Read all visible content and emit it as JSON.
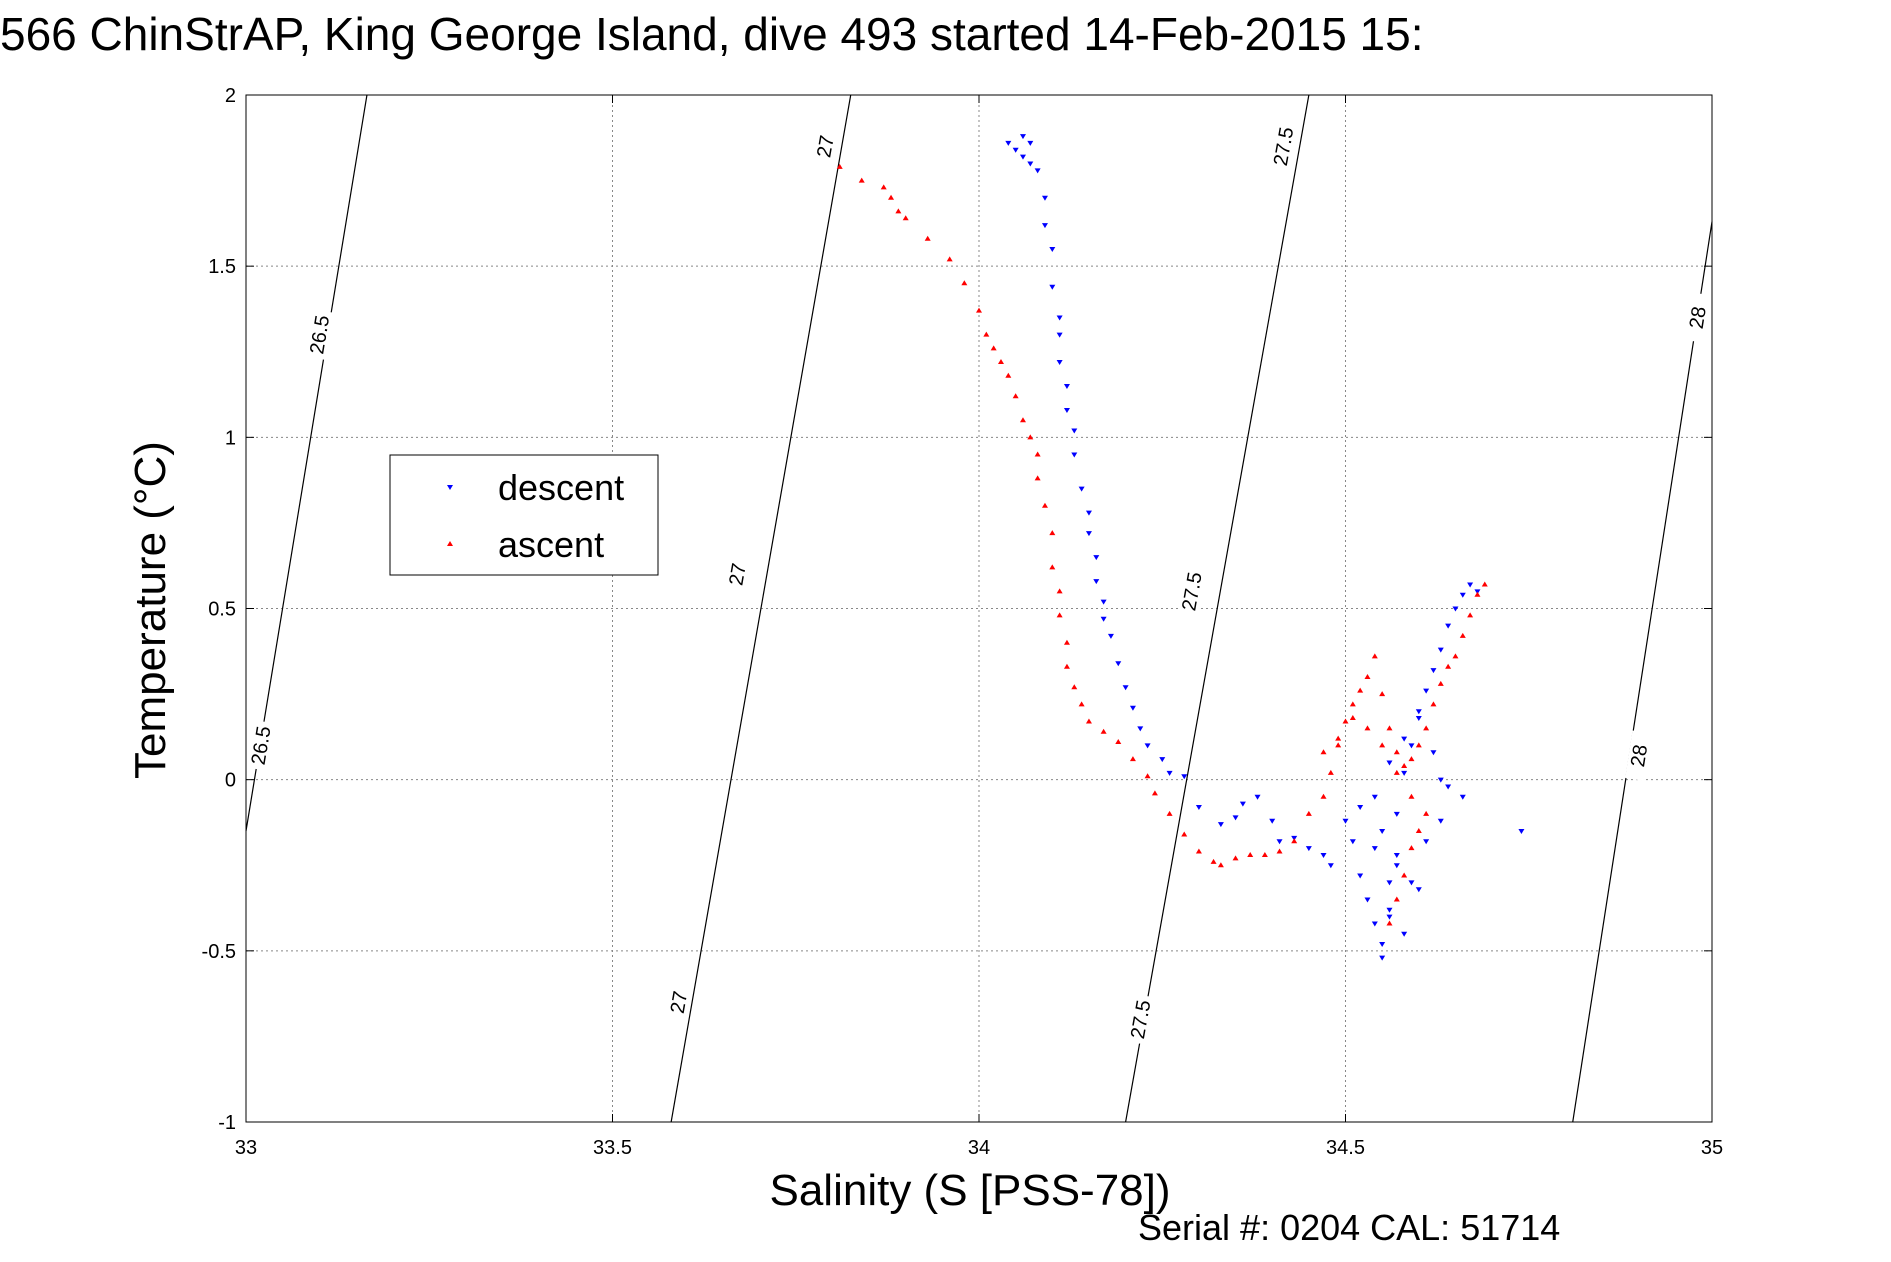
{
  "chart_data": {
    "type": "scatter",
    "title": "566 ChinStrAP, King George Island, dive 493 started 14-Feb-2015 15:",
    "xlabel": "Salinity (S [PSS-78])",
    "ylabel": "Temperature (°C)",
    "xlim": [
      33,
      35
    ],
    "ylim": [
      -1,
      2
    ],
    "xticks": [
      "33",
      "33.5",
      "34",
      "34.5",
      "35"
    ],
    "yticks": [
      "-1",
      "-0.5",
      "0",
      "0.5",
      "1",
      "1.5",
      "2"
    ],
    "grid": true,
    "legend_position": "middle-left",
    "legend": [
      {
        "name": "descent",
        "color": "#0000ff",
        "marker": "triangle-down"
      },
      {
        "name": "ascent",
        "color": "#ff0000",
        "marker": "triangle-up"
      }
    ],
    "contours": [
      {
        "label": "26.5",
        "points": [
          [
            33.0,
            -0.15
          ],
          [
            33.165,
            2.0
          ]
        ],
        "labels_at": [
          [
            33.1,
            1.3
          ],
          [
            33.02,
            0.1
          ]
        ]
      },
      {
        "label": "27",
        "points": [
          [
            33.58,
            -1.0
          ],
          [
            33.825,
            2.0
          ]
        ],
        "labels_at": [
          [
            33.79,
            1.85
          ],
          [
            33.67,
            0.6
          ],
          [
            33.59,
            -0.65
          ]
        ]
      },
      {
        "label": "27.5",
        "points": [
          [
            34.2,
            -1.0
          ],
          [
            34.45,
            2.0
          ]
        ],
        "labels_at": [
          [
            34.415,
            1.85
          ],
          [
            34.29,
            0.55
          ],
          [
            34.22,
            -0.7
          ]
        ]
      },
      {
        "label": "28",
        "points": [
          [
            34.81,
            -1.0
          ],
          [
            35.0,
            1.63
          ]
        ],
        "labels_at": [
          [
            34.98,
            1.35
          ],
          [
            34.9,
            0.07
          ]
        ]
      }
    ],
    "series": [
      {
        "name": "descent",
        "color": "#0000ff",
        "x": [
          34.04,
          34.05,
          34.06,
          34.06,
          34.07,
          34.07,
          34.08,
          34.09,
          34.09,
          34.1,
          34.1,
          34.11,
          34.11,
          34.11,
          34.12,
          34.12,
          34.13,
          34.13,
          34.14,
          34.15,
          34.15,
          34.16,
          34.16,
          34.17,
          34.17,
          34.18,
          34.19,
          34.2,
          34.21,
          34.22,
          34.23,
          34.25,
          34.26,
          34.28,
          34.3,
          34.33,
          34.35,
          34.36,
          34.38,
          34.4,
          34.41,
          34.43,
          34.45,
          34.47,
          34.48,
          34.5,
          34.51,
          34.52,
          34.53,
          34.54,
          34.55,
          34.55,
          34.56,
          34.56,
          34.57,
          34.57,
          34.58,
          34.59,
          34.6,
          34.61,
          34.62,
          34.63,
          34.64,
          34.65,
          34.66,
          34.67,
          34.68,
          34.54,
          34.56,
          34.58,
          34.6,
          34.62,
          34.64,
          34.55,
          34.57,
          34.59,
          34.61,
          34.63,
          34.74,
          34.52,
          34.54,
          34.56,
          34.58,
          34.6,
          34.63,
          34.66
        ],
        "y": [
          1.86,
          1.84,
          1.88,
          1.82,
          1.86,
          1.8,
          1.78,
          1.7,
          1.62,
          1.55,
          1.44,
          1.35,
          1.3,
          1.22,
          1.15,
          1.08,
          1.02,
          0.95,
          0.85,
          0.78,
          0.72,
          0.65,
          0.58,
          0.52,
          0.47,
          0.42,
          0.34,
          0.27,
          0.21,
          0.15,
          0.1,
          0.06,
          0.02,
          0.01,
          -0.08,
          -0.13,
          -0.11,
          -0.07,
          -0.05,
          -0.12,
          -0.18,
          -0.17,
          -0.2,
          -0.22,
          -0.25,
          -0.12,
          -0.18,
          -0.28,
          -0.35,
          -0.42,
          -0.48,
          -0.52,
          -0.4,
          -0.3,
          -0.22,
          -0.1,
          0.02,
          0.1,
          0.18,
          0.26,
          0.32,
          0.38,
          0.45,
          0.5,
          0.54,
          0.57,
          0.55,
          -0.05,
          0.05,
          0.12,
          0.2,
          0.08,
          -0.02,
          -0.15,
          -0.25,
          -0.3,
          -0.18,
          -0.12,
          -0.15,
          -0.08,
          -0.2,
          -0.38,
          -0.45,
          -0.32,
          0.0,
          -0.05
        ]
      },
      {
        "name": "ascent",
        "color": "#ff0000",
        "x": [
          33.81,
          33.84,
          33.87,
          33.88,
          33.89,
          33.9,
          33.93,
          33.96,
          33.98,
          34.0,
          34.01,
          34.02,
          34.03,
          34.04,
          34.05,
          34.06,
          34.07,
          34.08,
          34.08,
          34.09,
          34.1,
          34.1,
          34.11,
          34.11,
          34.12,
          34.12,
          34.13,
          34.14,
          34.15,
          34.17,
          34.19,
          34.21,
          34.23,
          34.24,
          34.26,
          34.28,
          34.3,
          34.32,
          34.33,
          34.35,
          34.37,
          34.39,
          34.41,
          34.43,
          34.45,
          34.47,
          34.48,
          34.49,
          34.5,
          34.51,
          34.52,
          34.53,
          34.54,
          34.55,
          34.56,
          34.57,
          34.58,
          34.59,
          34.6,
          34.61,
          34.62,
          34.63,
          34.64,
          34.65,
          34.66,
          34.67,
          34.68,
          34.69,
          34.47,
          34.49,
          34.51,
          34.53,
          34.55,
          34.57,
          34.59,
          34.61,
          34.56,
          34.57,
          34.58,
          34.59,
          34.6
        ],
        "y": [
          1.79,
          1.75,
          1.73,
          1.7,
          1.66,
          1.64,
          1.58,
          1.52,
          1.45,
          1.37,
          1.3,
          1.26,
          1.22,
          1.18,
          1.12,
          1.05,
          1.0,
          0.95,
          0.88,
          0.8,
          0.72,
          0.62,
          0.55,
          0.48,
          0.4,
          0.33,
          0.27,
          0.22,
          0.17,
          0.14,
          0.11,
          0.06,
          0.01,
          -0.04,
          -0.1,
          -0.16,
          -0.21,
          -0.24,
          -0.25,
          -0.23,
          -0.22,
          -0.22,
          -0.21,
          -0.18,
          -0.1,
          -0.05,
          0.02,
          0.1,
          0.17,
          0.22,
          0.26,
          0.3,
          0.36,
          0.25,
          0.15,
          0.08,
          0.04,
          0.06,
          0.1,
          0.15,
          0.22,
          0.28,
          0.33,
          0.36,
          0.42,
          0.48,
          0.54,
          0.57,
          0.08,
          0.12,
          0.18,
          0.15,
          0.1,
          0.02,
          -0.05,
          -0.1,
          -0.42,
          -0.35,
          -0.28,
          -0.2,
          -0.15
        ]
      }
    ]
  },
  "footer": {
    "serial": "Serial #: 0204  CAL: 51714"
  }
}
